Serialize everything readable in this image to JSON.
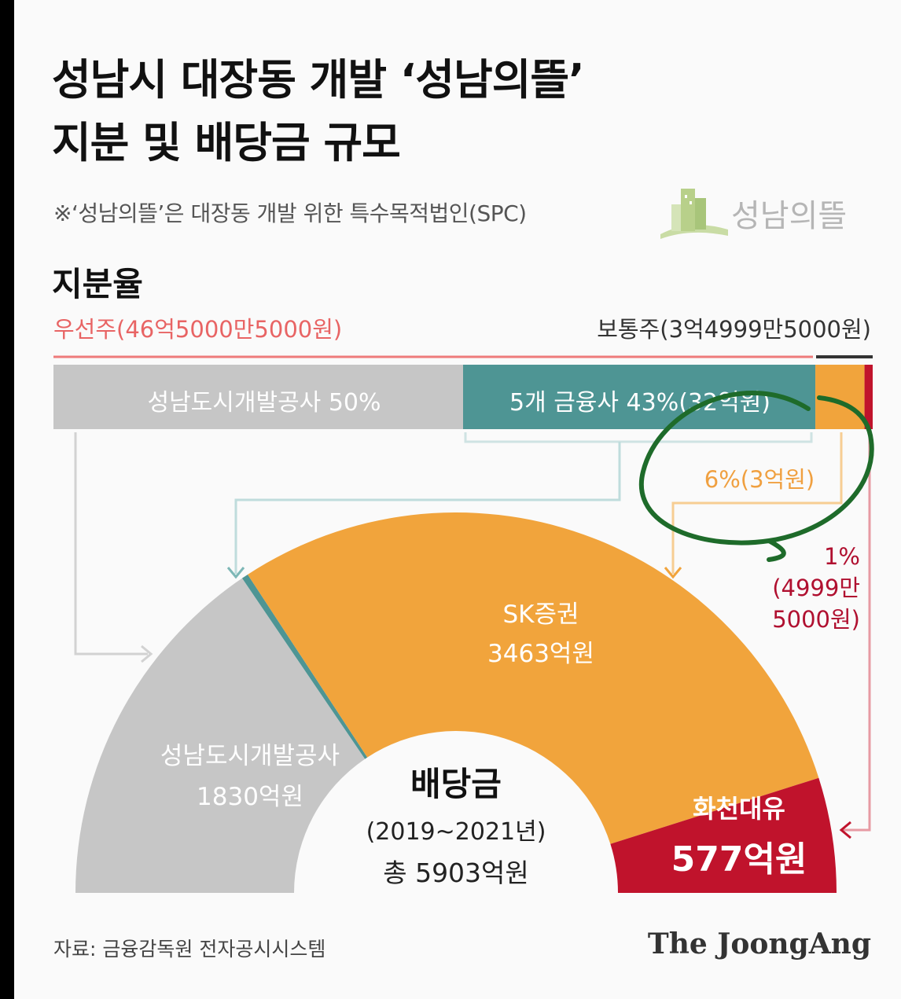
{
  "title_line1": "성남시 대장동 개발 ‘성남의뜰’",
  "title_line2": "지분 및 배당금 규모",
  "note": "※‘성남의뜰’은 대장동 개발 위한 특수목적법인(SPC)",
  "logo_text": "성남의뜰",
  "section_title": "지분율",
  "preferred_label": "우선주(46억5000만5000원)",
  "common_label": "보통주(3억4999만5000원)",
  "source": "자료: 금융감독원 전자공시시스템",
  "brand": "The JoongAng",
  "colors": {
    "gray": "#c6c6c6",
    "teal": "#4e9594",
    "orange": "#f1a43c",
    "red": "#c0132c",
    "pink_line": "#ee7b7b",
    "annotation_green": "#1e6b2a"
  },
  "chart_data": [
    {
      "type": "bar",
      "orientation": "stacked-horizontal",
      "title": "지분율",
      "categories": [
        "성남도시개발공사",
        "5개 금융사",
        "SK증권",
        "화천대유"
      ],
      "values": [
        50,
        43,
        6,
        1
      ],
      "unit": "%",
      "labels": [
        "성남도시개발공사 50%",
        "5개 금융사 43%(32억원)",
        "6%(3억원)",
        "1%",
        "(4999만",
        "5000원)"
      ],
      "groups": {
        "preferred": "우선주(46억5000만5000원)",
        "common": "보통주(3억4999만5000원)"
      }
    },
    {
      "type": "pie",
      "shape": "semicircle-donut",
      "title": "배당금",
      "subtitle": "(2019~2021년)",
      "total_label": "총 5903억원",
      "total": 5903,
      "unit": "억원",
      "slices": [
        {
          "name": "성남도시개발공사",
          "value": 1830,
          "label": "1830억원"
        },
        {
          "name": "5개 금융사",
          "value": 33,
          "label": ""
        },
        {
          "name": "SK증권",
          "value": 3463,
          "label": "3463억원"
        },
        {
          "name": "화천대유",
          "value": 577,
          "label": "577억원"
        }
      ]
    }
  ]
}
